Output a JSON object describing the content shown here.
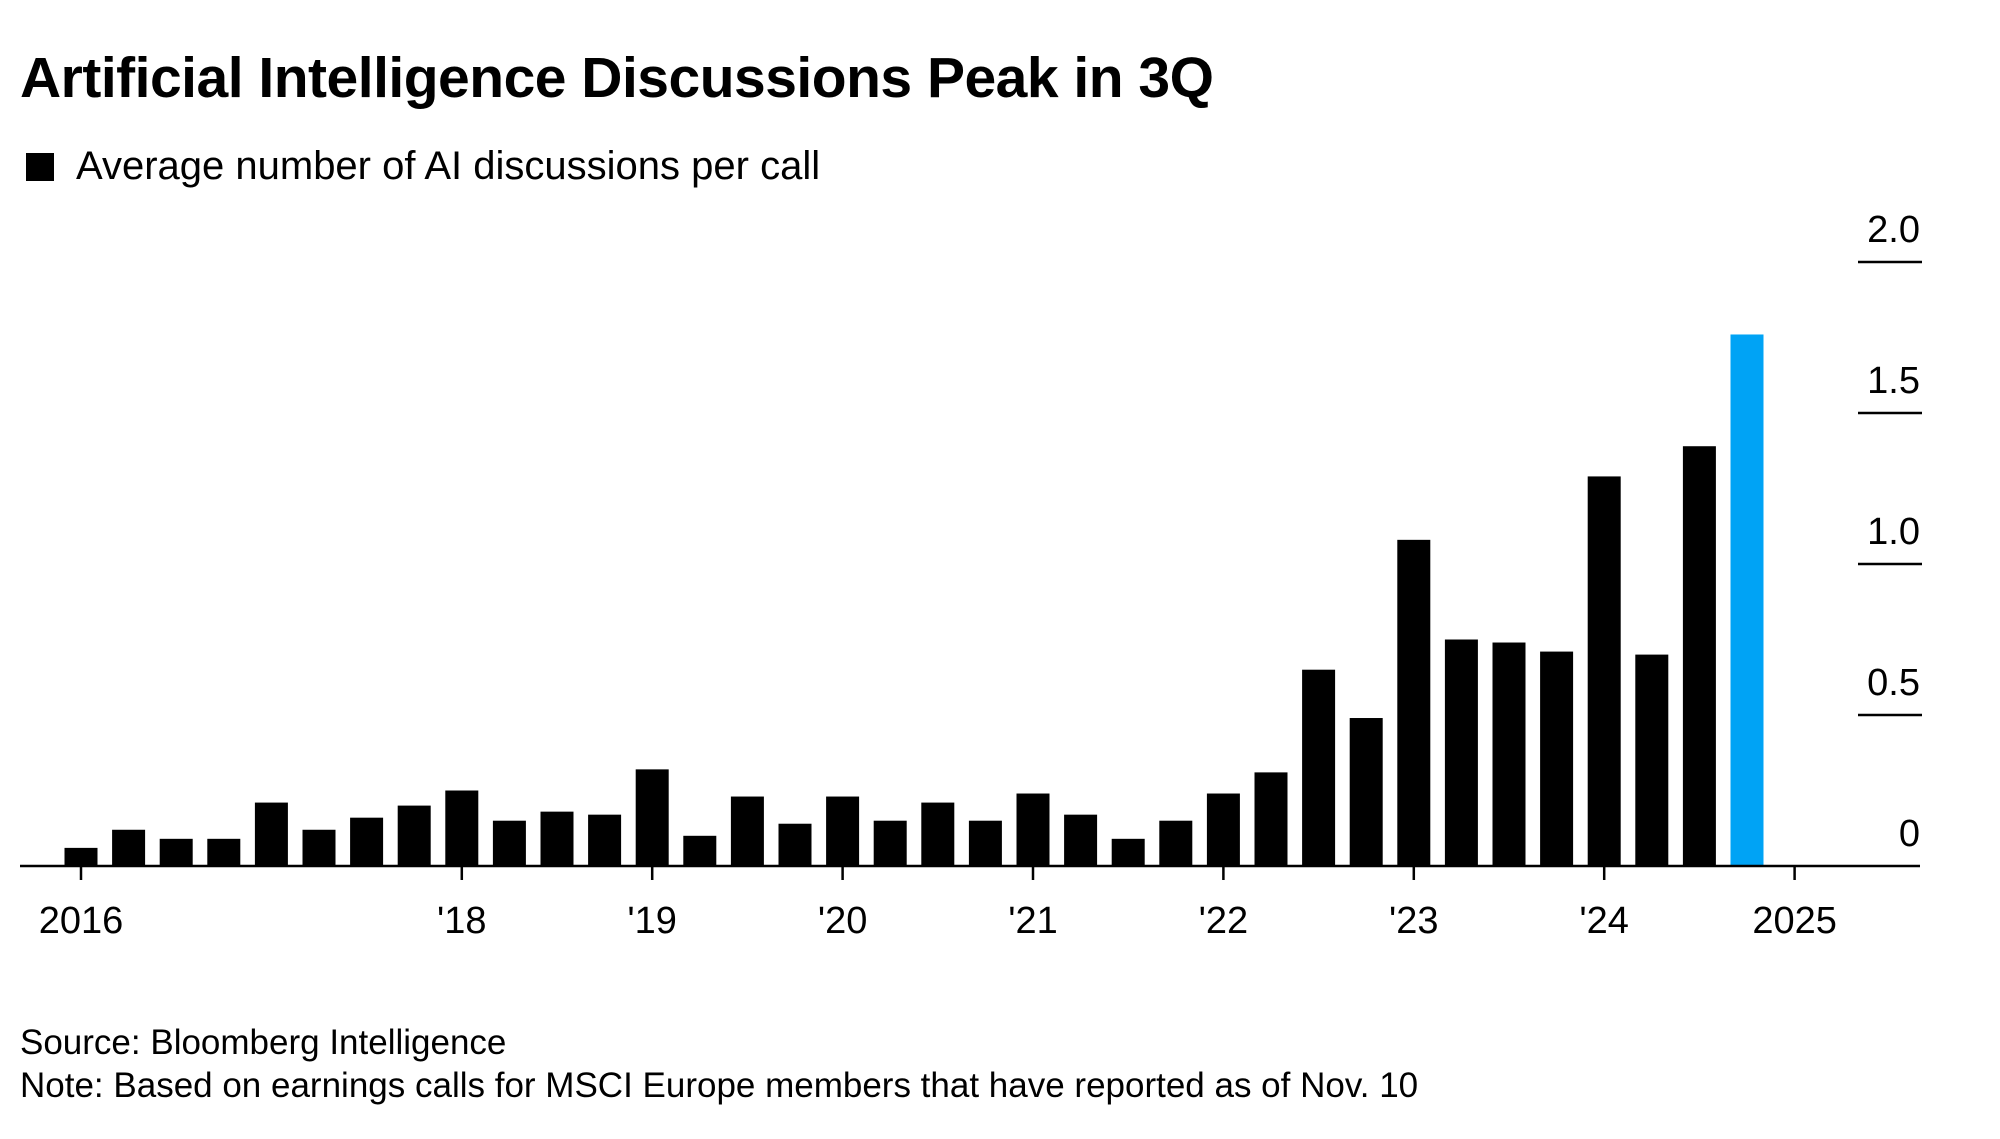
{
  "header": {
    "title": "Artificial Intelligence Discussions Peak in 3Q"
  },
  "footer": {
    "source": "Source: Bloomberg Intelligence",
    "note": "Note: Based on earnings calls for MSCI Europe members that have reported as of Nov. 10"
  },
  "colors": {
    "bar": "#000000",
    "highlight": "#00a3f5",
    "axis": "#000000"
  },
  "chart_data": {
    "type": "bar",
    "title": "Artificial Intelligence Discussions Peak in 3Q",
    "legend": [
      {
        "label": "Average number of AI discussions per call",
        "color": "#000000"
      }
    ],
    "legend_position": "top-left",
    "y_axis_side": "right",
    "ylim": [
      0,
      2.0
    ],
    "y_ticks": [
      {
        "value": 0,
        "label": "0"
      },
      {
        "value": 0.5,
        "label": "0.5"
      },
      {
        "value": 1.0,
        "label": "1.0"
      },
      {
        "value": 1.5,
        "label": "1.5"
      },
      {
        "value": 2.0,
        "label": "2.0"
      }
    ],
    "x_tick_labels": [
      {
        "quarter_index": 0,
        "label": "2016"
      },
      {
        "quarter_index": 8,
        "label": "'18"
      },
      {
        "quarter_index": 12,
        "label": "'19"
      },
      {
        "quarter_index": 16,
        "label": "'20"
      },
      {
        "quarter_index": 20,
        "label": "'21"
      },
      {
        "quarter_index": 24,
        "label": "'22"
      },
      {
        "quarter_index": 28,
        "label": "'23"
      },
      {
        "quarter_index": 32,
        "label": "'24"
      },
      {
        "quarter_index": 36,
        "label": "2025"
      }
    ],
    "grid": false,
    "highlighted_bar_index": 35,
    "series": [
      {
        "name": "Average number of AI discussions per call",
        "values": [
          0.06,
          0.12,
          0.09,
          0.09,
          0.21,
          0.12,
          0.16,
          0.2,
          0.25,
          0.15,
          0.18,
          0.17,
          0.32,
          0.1,
          0.23,
          0.14,
          0.23,
          0.15,
          0.21,
          0.15,
          0.24,
          0.17,
          0.09,
          0.15,
          0.24,
          0.31,
          0.65,
          0.49,
          1.08,
          0.75,
          0.74,
          0.71,
          1.29,
          0.7,
          1.39,
          1.76
        ]
      }
    ]
  }
}
